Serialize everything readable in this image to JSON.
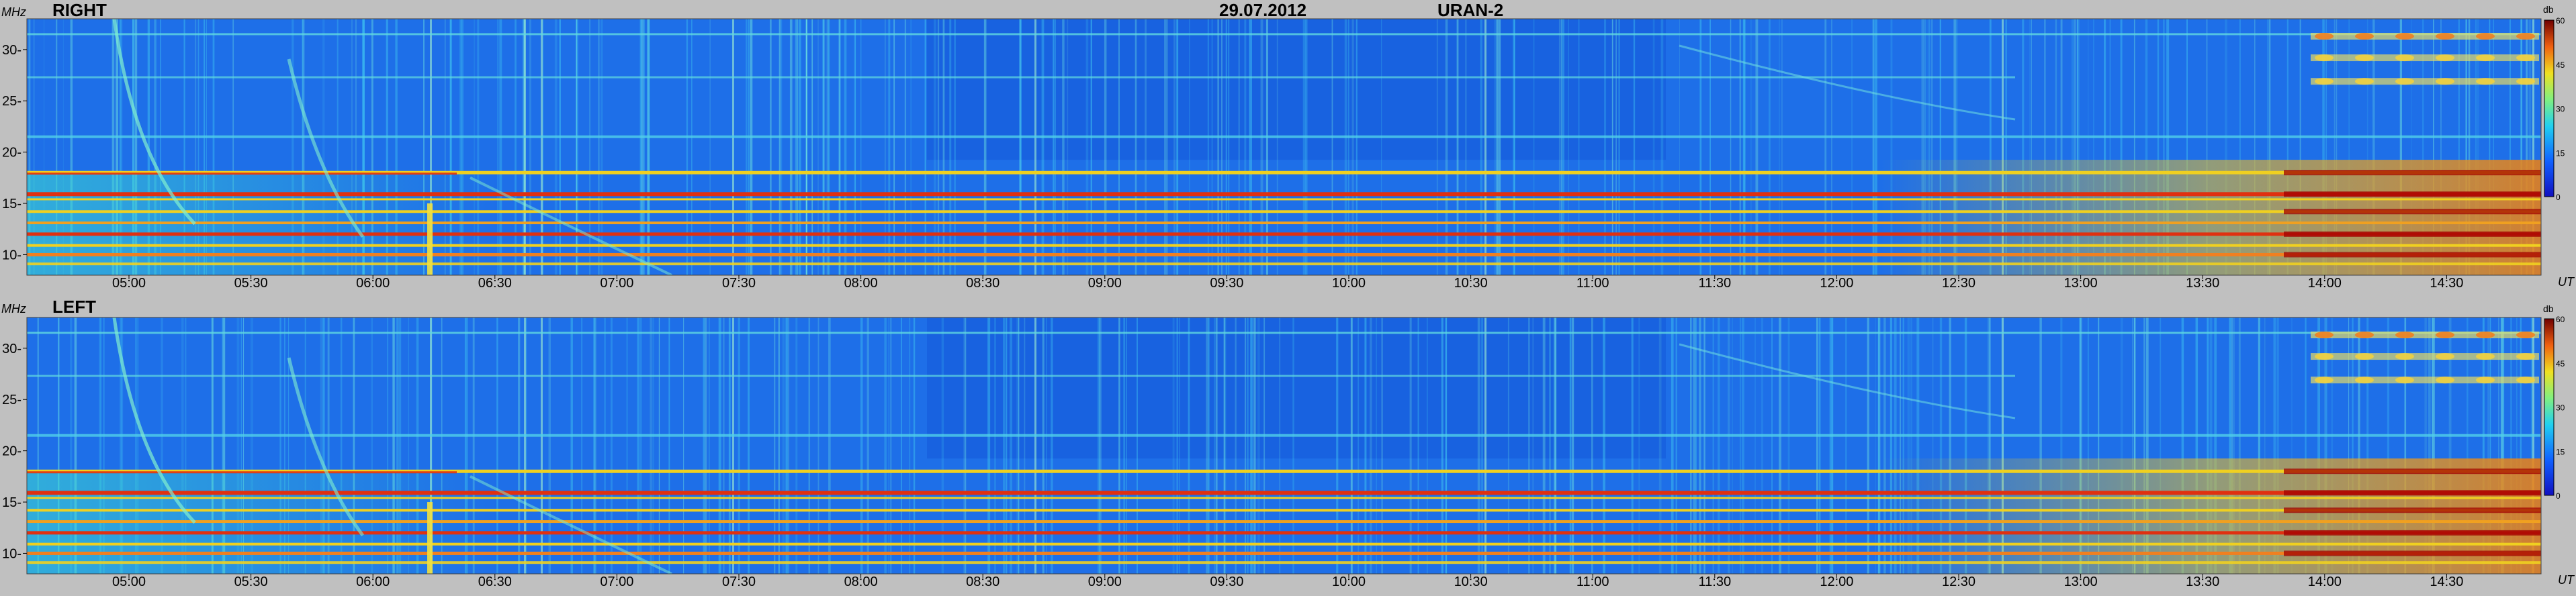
{
  "header": {
    "date": "29.07.2012",
    "instrument": "URAN-2"
  },
  "chart_data": [
    {
      "type": "heatmap",
      "panel": "RIGHT",
      "ylabel": "MHz",
      "xlabel": "UT",
      "x_ticks": [
        "05:00",
        "05:30",
        "06:00",
        "06:30",
        "07:00",
        "07:30",
        "08:00",
        "08:30",
        "09:00",
        "09:30",
        "10:00",
        "10:30",
        "11:00",
        "11:30",
        "12:00",
        "12:30",
        "13:00",
        "13:30",
        "14:00",
        "14:30"
      ],
      "y_ticks": [
        10,
        15,
        20,
        25,
        30
      ],
      "ylim": [
        8,
        33
      ],
      "colorbar": {
        "unit": "db",
        "ticks": [
          0,
          15,
          30,
          45,
          60
        ],
        "range": [
          0,
          60
        ]
      }
    },
    {
      "type": "heatmap",
      "panel": "LEFT",
      "ylabel": "MHz",
      "xlabel": "UT",
      "x_ticks": [
        "05:00",
        "05:30",
        "06:00",
        "06:30",
        "07:00",
        "07:30",
        "08:00",
        "08:30",
        "09:00",
        "09:30",
        "10:00",
        "10:30",
        "11:00",
        "11:30",
        "12:00",
        "12:30",
        "13:00",
        "13:30",
        "14:00",
        "14:30"
      ],
      "y_ticks": [
        10,
        15,
        20,
        25,
        30
      ],
      "ylim": [
        8,
        33
      ],
      "colorbar": {
        "unit": "db",
        "ticks": [
          0,
          15,
          30,
          45,
          60
        ],
        "range": [
          0,
          60
        ]
      }
    }
  ],
  "colors": {
    "background": "#1e6fe8",
    "band_hot": "#e03010",
    "band_warm": "#f0d020",
    "band_mid": "#40d8d0",
    "page": "#c0c0c0"
  }
}
